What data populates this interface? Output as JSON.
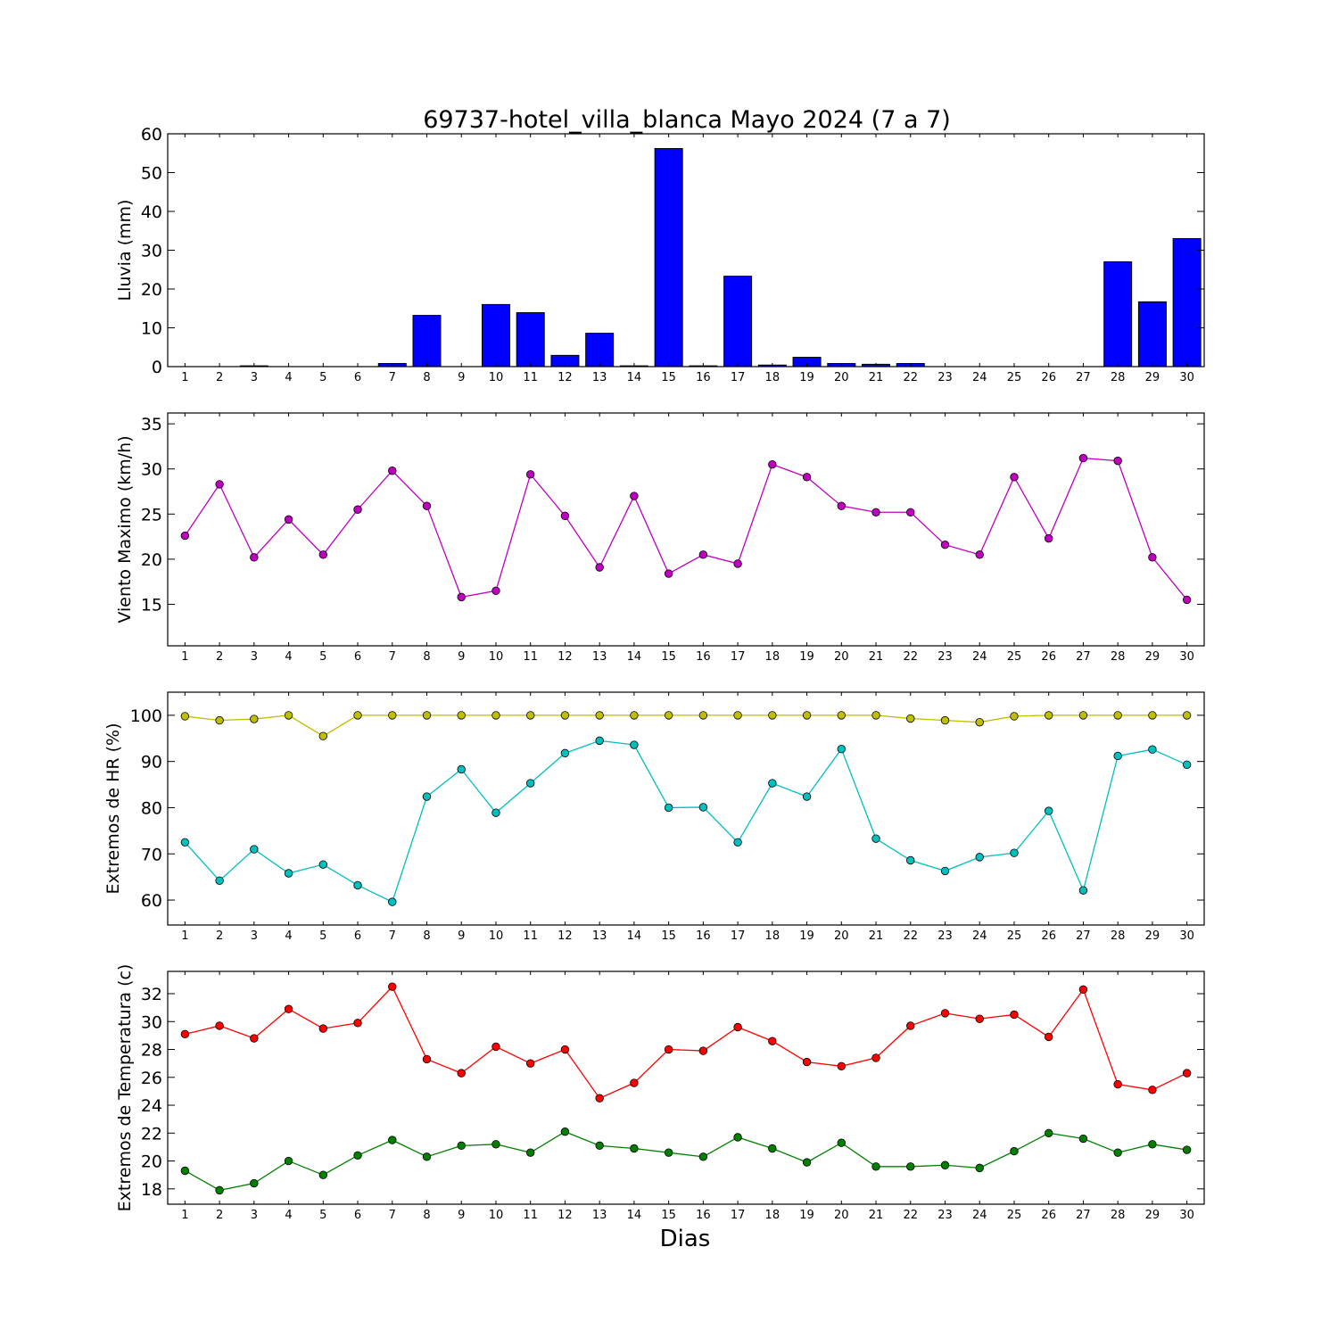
{
  "title": "69737-hotel_villa_blanca Mayo 2024  (7 a 7)",
  "xlabel": "Dias",
  "colors": {
    "rain": "#0000ff",
    "wind": "#bf00bf",
    "hr_max": "#bfbf00",
    "hr_min": "#00bfbf",
    "temp_max": "#ff0000",
    "temp_min": "#008000"
  },
  "chart_data": [
    {
      "type": "bar",
      "ylabel": "Lluvia (mm)",
      "ylim": [
        0,
        60
      ],
      "yticks": [
        0,
        10,
        20,
        30,
        40,
        50,
        60
      ],
      "grid": false,
      "categories": [
        "1",
        "2",
        "3",
        "4",
        "5",
        "6",
        "7",
        "8",
        "9",
        "10",
        "11",
        "12",
        "13",
        "14",
        "15",
        "16",
        "17",
        "18",
        "19",
        "20",
        "21",
        "22",
        "23",
        "24",
        "25",
        "26",
        "27",
        "28",
        "29",
        "30"
      ],
      "series": [
        {
          "values": [
            0,
            0,
            0.2,
            0,
            0,
            0,
            0.8,
            13.2,
            0,
            16,
            13.9,
            2.9,
            8.6,
            0.2,
            56.2,
            0.2,
            23.3,
            0.4,
            2.4,
            0.8,
            0.6,
            0.8,
            0,
            0,
            0,
            0,
            0,
            27,
            16.7,
            33
          ]
        }
      ]
    },
    {
      "type": "line",
      "ylabel": "Viento Maximo (km/h)",
      "ylim": [
        10.4,
        36.2
      ],
      "yticks": [
        15,
        20,
        25,
        30,
        35
      ],
      "grid": false,
      "categories": [
        "1",
        "2",
        "3",
        "4",
        "5",
        "6",
        "7",
        "8",
        "9",
        "10",
        "11",
        "12",
        "13",
        "14",
        "15",
        "16",
        "17",
        "18",
        "19",
        "20",
        "21",
        "22",
        "23",
        "24",
        "25",
        "26",
        "27",
        "28",
        "29",
        "30"
      ],
      "series": [
        {
          "values": [
            22.6,
            28.3,
            20.2,
            24.4,
            20.5,
            25.5,
            29.8,
            25.9,
            15.8,
            16.5,
            29.4,
            24.8,
            19.1,
            27.0,
            18.4,
            20.5,
            19.5,
            30.5,
            29.1,
            25.9,
            25.2,
            25.2,
            21.6,
            20.5,
            29.1,
            22.3,
            31.2,
            30.9,
            20.2,
            15.5
          ]
        }
      ]
    },
    {
      "type": "line",
      "ylabel": "Extremos de HR (%)",
      "ylim": [
        54.6,
        105
      ],
      "yticks": [
        60,
        70,
        80,
        90,
        100
      ],
      "grid": false,
      "categories": [
        "1",
        "2",
        "3",
        "4",
        "5",
        "6",
        "7",
        "8",
        "9",
        "10",
        "11",
        "12",
        "13",
        "14",
        "15",
        "16",
        "17",
        "18",
        "19",
        "20",
        "21",
        "22",
        "23",
        "24",
        "25",
        "26",
        "27",
        "28",
        "29",
        "30"
      ],
      "series": [
        {
          "values": [
            99.8,
            98.9,
            99.2,
            100,
            95.5,
            100,
            100,
            100,
            100,
            100,
            100,
            100,
            100,
            100,
            100,
            100,
            100,
            100,
            100,
            100,
            100,
            99.3,
            98.9,
            98.5,
            99.8,
            100,
            100,
            100,
            100,
            100
          ]
        },
        {
          "values": [
            72.5,
            64.2,
            71.0,
            65.8,
            67.7,
            63.2,
            59.6,
            82.4,
            88.3,
            78.9,
            85.3,
            91.8,
            94.5,
            93.6,
            80.0,
            80.1,
            72.5,
            85.3,
            82.4,
            92.7,
            73.3,
            68.6,
            66.3,
            69.3,
            70.2,
            79.3,
            62.1,
            91.2,
            92.6,
            89.3
          ]
        }
      ]
    },
    {
      "type": "line",
      "ylabel": "Extremos de Temperatura (c)",
      "ylim": [
        16.9,
        33.6
      ],
      "yticks": [
        18,
        20,
        22,
        24,
        26,
        28,
        30,
        32
      ],
      "grid": false,
      "categories": [
        "1",
        "2",
        "3",
        "4",
        "5",
        "6",
        "7",
        "8",
        "9",
        "10",
        "11",
        "12",
        "13",
        "14",
        "15",
        "16",
        "17",
        "18",
        "19",
        "20",
        "21",
        "22",
        "23",
        "24",
        "25",
        "26",
        "27",
        "28",
        "29",
        "30"
      ],
      "series": [
        {
          "values": [
            29.1,
            29.7,
            28.8,
            30.9,
            29.5,
            29.9,
            32.5,
            27.3,
            26.3,
            28.2,
            27.0,
            28.0,
            24.5,
            25.6,
            28.0,
            27.9,
            29.6,
            28.6,
            27.1,
            26.8,
            27.4,
            29.7,
            30.6,
            30.2,
            30.5,
            28.9,
            32.3,
            25.5,
            25.1,
            26.3
          ]
        },
        {
          "values": [
            19.3,
            17.9,
            18.4,
            20.0,
            19.0,
            20.4,
            21.5,
            20.3,
            21.1,
            21.2,
            20.6,
            22.1,
            21.1,
            20.9,
            20.6,
            20.3,
            21.7,
            20.9,
            19.9,
            21.3,
            19.6,
            19.6,
            19.7,
            19.5,
            20.7,
            22.0,
            21.6,
            20.6,
            21.2,
            20.8
          ]
        }
      ]
    }
  ]
}
